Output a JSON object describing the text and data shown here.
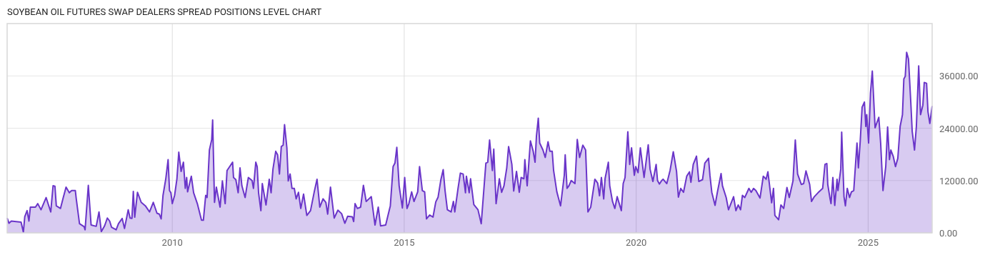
{
  "chart_data": {
    "type": "area",
    "title": "SOYBEAN OIL FUTURES SWAP DEALERS SPREAD POSITIONS LEVEL CHART",
    "xlim": [
      2006.44,
      2026.38
    ],
    "xticks": [
      2010,
      2015,
      2020,
      2025
    ],
    "ylim": [
      0,
      48000
    ],
    "yticks": [
      {
        "value": 0,
        "label": "0.00"
      },
      {
        "value": 12000,
        "label": "12000.00"
      },
      {
        "value": 24000,
        "label": "24000.00"
      },
      {
        "value": 36000,
        "label": "36000.00"
      }
    ],
    "grid": true,
    "series": [
      {
        "color": "#6a35c9",
        "x": [
          2006.44,
          2006.48,
          2006.53,
          2006.74,
          2006.79,
          2006.82,
          2006.87,
          2006.91,
          2006.94,
          2007.05,
          2007.1,
          2007.17,
          2007.28,
          2007.38,
          2007.43,
          2007.47,
          2007.5,
          2007.59,
          2007.65,
          2007.71,
          2007.78,
          2007.83,
          2007.91,
          2007.93,
          2008.0,
          2008.1,
          2008.12,
          2008.19,
          2008.25,
          2008.36,
          2008.42,
          2008.47,
          2008.54,
          2008.6,
          2008.65,
          2008.69,
          2008.79,
          2008.84,
          2008.92,
          2008.97,
          2009.05,
          2009.09,
          2009.13,
          2009.16,
          2009.19,
          2009.25,
          2009.33,
          2009.42,
          2009.51,
          2009.59,
          2009.67,
          2009.72,
          2009.76,
          2009.8,
          2009.86,
          2009.91,
          2009.94,
          2009.97,
          2010.0,
          2010.05,
          2010.1,
          2010.14,
          2010.19,
          2010.24,
          2010.28,
          2010.31,
          2010.33,
          2010.41,
          2010.46,
          2010.54,
          2010.63,
          2010.67,
          2010.72,
          2010.75,
          2010.8,
          2010.85,
          2010.87,
          2010.91,
          2010.95,
          2011.03,
          2011.08,
          2011.14,
          2011.18,
          2011.25,
          2011.3,
          2011.32,
          2011.37,
          2011.42,
          2011.46,
          2011.5,
          2011.57,
          2011.61,
          2011.64,
          2011.72,
          2011.75,
          2011.8,
          2011.83,
          2011.86,
          2011.91,
          2011.94,
          2012.02,
          2012.09,
          2012.13,
          2012.17,
          2012.23,
          2012.27,
          2012.31,
          2012.35,
          2012.39,
          2012.42,
          2012.47,
          2012.5,
          2012.54,
          2012.58,
          2012.63,
          2012.67,
          2012.72,
          2012.77,
          2012.83,
          2012.9,
          2012.98,
          2013.06,
          2013.12,
          2013.18,
          2013.25,
          2013.31,
          2013.35,
          2013.41,
          2013.49,
          2013.57,
          2013.65,
          2013.72,
          2013.78,
          2013.88,
          2013.91,
          2013.94,
          2013.99,
          2014.06,
          2014.12,
          2014.18,
          2014.24,
          2014.29,
          2014.37,
          2014.44,
          2014.49,
          2014.6,
          2014.65,
          2014.7,
          2014.76,
          2014.8,
          2014.84,
          2014.89,
          2014.96,
          2015.01,
          2015.06,
          2015.1,
          2015.16,
          2015.21,
          2015.29,
          2015.33,
          2015.39,
          2015.44,
          2015.48,
          2015.55,
          2015.62,
          2015.68,
          2015.73,
          2015.79,
          2015.84,
          2015.88,
          2015.93,
          2016.01,
          2016.06,
          2016.09,
          2016.16,
          2016.21,
          2016.27,
          2016.32,
          2016.34,
          2016.4,
          2016.43,
          2016.5,
          2016.59,
          2016.66,
          2016.76,
          2016.8,
          2016.84,
          2016.9,
          2016.93,
          2016.98,
          2017.05,
          2017.1,
          2017.15,
          2017.21,
          2017.25,
          2017.32,
          2017.36,
          2017.42,
          2017.48,
          2017.52,
          2017.58,
          2017.6,
          2017.65,
          2017.72,
          2017.78,
          2017.82,
          2017.85,
          2017.89,
          2017.92,
          2017.99,
          2018.04,
          2018.1,
          2018.14,
          2018.19,
          2018.22,
          2018.29,
          2018.37,
          2018.45,
          2018.47,
          2018.51,
          2018.55,
          2018.6,
          2018.68,
          2018.73,
          2018.78,
          2018.85,
          2018.91,
          2018.96,
          2019.02,
          2019.11,
          2019.17,
          2019.21,
          2019.25,
          2019.3,
          2019.33,
          2019.4,
          2019.43,
          2019.49,
          2019.54,
          2019.59,
          2019.68,
          2019.72,
          2019.76,
          2019.82,
          2019.86,
          2019.9,
          2019.96,
          2019.99,
          2020.04,
          2020.09,
          2020.17,
          2020.26,
          2020.3,
          2020.36,
          2020.43,
          2020.46,
          2020.5,
          2020.55,
          2020.58,
          2020.66,
          2020.73,
          2020.8,
          2020.87,
          2020.91,
          2020.96,
          2021.02,
          2021.09,
          2021.15,
          2021.18,
          2021.23,
          2021.3,
          2021.35,
          2021.43,
          2021.48,
          2021.56,
          2021.59,
          2021.63,
          2021.7,
          2021.75,
          2021.83,
          2021.86,
          2021.94,
          2021.99,
          2022.1,
          2022.15,
          2022.2,
          2022.25,
          2022.29,
          2022.34,
          2022.43,
          2022.48,
          2022.53,
          2022.58,
          2022.67,
          2022.74,
          2022.8,
          2022.84,
          2022.92,
          2022.96,
          2022.99,
          2023.07,
          2023.12,
          2023.18,
          2023.25,
          2023.3,
          2023.38,
          2023.43,
          2023.48,
          2023.56,
          2023.61,
          2023.66,
          2023.74,
          2023.78,
          2023.84,
          2023.92,
          2024.02,
          2024.07,
          2024.11,
          2024.13,
          2024.18,
          2024.2,
          2024.24,
          2024.28,
          2024.33,
          2024.35,
          2024.41,
          2024.43,
          2024.48,
          2024.51,
          2024.55,
          2024.6,
          2024.64,
          2024.69,
          2024.76,
          2024.79,
          2024.83,
          2024.87,
          2024.92,
          2024.95,
          2024.97,
          2025.01,
          2025.05,
          2025.09,
          2025.15,
          2025.23,
          2025.27,
          2025.32,
          2025.38,
          2025.42,
          2025.46,
          2025.49,
          2025.54,
          2025.59,
          2025.64,
          2025.69,
          2025.74,
          2025.77,
          2025.8,
          2025.83,
          2025.87,
          2025.92,
          2025.95,
          2026.0,
          2026.04,
          2026.09,
          2026.13,
          2026.18,
          2026.21,
          2026.26,
          2026.29,
          2026.33,
          2026.38
        ],
        "values": [
          3400,
          2200,
          2700,
          2450,
          160,
          3700,
          5100,
          2700,
          5900,
          5900,
          6700,
          5300,
          8100,
          4800,
          10800,
          10700,
          6200,
          5600,
          8100,
          10500,
          9200,
          9700,
          9700,
          7800,
          2100,
          1400,
          700,
          10900,
          1800,
          1500,
          4800,
          300,
          1600,
          3400,
          2700,
          1300,
          700,
          2100,
          3300,
          1000,
          5300,
          3400,
          3300,
          9500,
          3600,
          9300,
          7000,
          6200,
          4800,
          7000,
          4500,
          4300,
          3200,
          8600,
          12400,
          16800,
          9700,
          9200,
          6700,
          8600,
          12400,
          18500,
          14100,
          16200,
          10200,
          12700,
          9400,
          13000,
          9200,
          6700,
          2900,
          2900,
          8600,
          8100,
          19000,
          21400,
          25900,
          7000,
          10500,
          5900,
          11900,
          6700,
          14300,
          15400,
          16200,
          12700,
          12200,
          9200,
          14900,
          10800,
          8100,
          10800,
          12700,
          12000,
          10200,
          16200,
          15200,
          9200,
          5100,
          11300,
          6400,
          12300,
          9200,
          14600,
          18700,
          17900,
          13500,
          19800,
          20100,
          24800,
          19500,
          11900,
          13500,
          10200,
          10200,
          7800,
          9300,
          5600,
          8900,
          4000,
          5100,
          9400,
          12300,
          5900,
          7800,
          7000,
          4300,
          10500,
          3400,
          5200,
          4400,
          2200,
          3800,
          3700,
          2600,
          6700,
          5600,
          5900,
          10900,
          7200,
          7800,
          8300,
          1800,
          5900,
          1600,
          1800,
          4000,
          6200,
          15200,
          16000,
          19600,
          10800,
          5700,
          12700,
          5600,
          6700,
          9400,
          7200,
          9400,
          15200,
          9700,
          9400,
          3200,
          4100,
          3600,
          7100,
          8200,
          12200,
          14500,
          9700,
          5300,
          4800,
          7200,
          4800,
          10200,
          13700,
          13500,
          9200,
          13000,
          9200,
          12400,
          6500,
          5300,
          2100,
          16000,
          16200,
          21300,
          14300,
          19200,
          6700,
          12400,
          9300,
          10800,
          14900,
          19800,
          15700,
          9600,
          14100,
          9300,
          12700,
          12400,
          16800,
          10800,
          21100,
          18700,
          16200,
          22200,
          26300,
          20600,
          19000,
          17300,
          20900,
          18700,
          18700,
          14300,
          9400,
          6200,
          13200,
          17900,
          10200,
          10800,
          12000,
          11300,
          21400,
          17300,
          20100,
          19000,
          4800,
          5900,
          12300,
          11400,
          8500,
          12700,
          7800,
          12500,
          16200,
          10800,
          7200,
          5600,
          8300,
          5100,
          11300,
          12700,
          23200,
          15700,
          19500,
          13200,
          15200,
          13800,
          19500,
          12700,
          20200,
          14600,
          11800,
          15700,
          12000,
          11200,
          12000,
          12300,
          11300,
          14300,
          18600,
          14100,
          8200,
          10200,
          9300,
          13000,
          14000,
          11600,
          15700,
          17600,
          11800,
          12200,
          16000,
          17100,
          13200,
          9300,
          6300,
          9300,
          13600,
          10800,
          8100,
          5300,
          8300,
          5100,
          6400,
          5300,
          8600,
          8100,
          10200,
          9300,
          10200,
          9700,
          8000,
          13000,
          12300,
          14000,
          6900,
          10200,
          4000,
          3000,
          6400,
          5600,
          10400,
          8100,
          11900,
          21300,
          13500,
          11100,
          11300,
          14200,
          11100,
          7200,
          8300,
          9200,
          10200,
          15700,
          15900,
          11100,
          7800,
          6700,
          12700,
          6300,
          12300,
          9700,
          14600,
          23100,
          8300,
          6200,
          10200,
          8100,
          9400,
          9700,
          20600,
          14900,
          21100,
          28800,
          30000,
          24400,
          27100,
          20600,
          32000,
          37100,
          24100,
          26500,
          20600,
          9700,
          15200,
          24300,
          16800,
          19000,
          17600,
          15200,
          17100,
          24400,
          27100,
          35300,
          35900,
          41400,
          39900,
          29900,
          23300,
          19000,
          24400,
          38300,
          27100,
          29300,
          34500,
          34300,
          27800,
          25100,
          29100
        ]
      }
    ]
  }
}
